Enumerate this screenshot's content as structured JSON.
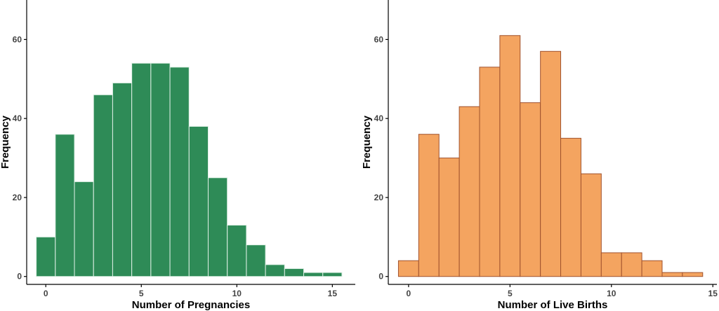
{
  "chart_data": [
    {
      "type": "bar",
      "xlabel": "Number of Pregnancies",
      "ylabel": "Frequency",
      "bin_width": 1,
      "bin_centers": [
        0,
        1,
        2,
        3,
        4,
        5,
        6,
        7,
        8,
        9,
        10,
        11,
        12,
        13,
        14,
        15
      ],
      "values": [
        10,
        36,
        24,
        46,
        49,
        54,
        54,
        53,
        38,
        25,
        13,
        8,
        3,
        2,
        1,
        1
      ],
      "xlim": [
        -1,
        16.2
      ],
      "ylim": [
        -2,
        70
      ],
      "xticks": [
        0,
        5,
        10,
        15
      ],
      "yticks": [
        0,
        20,
        40,
        60
      ],
      "fill": "#2e8b57",
      "stroke": "#dff0e6",
      "grid": false
    },
    {
      "type": "bar",
      "xlabel": "Number of Live Births",
      "ylabel": "Frequency",
      "bin_width": 1,
      "bin_centers": [
        0,
        1,
        2,
        3,
        4,
        5,
        6,
        7,
        8,
        9,
        10,
        11,
        12,
        13,
        14
      ],
      "values": [
        4,
        36,
        30,
        43,
        53,
        61,
        44,
        57,
        35,
        26,
        6,
        6,
        4,
        1,
        1
      ],
      "xlim": [
        -1,
        15.2
      ],
      "ylim": [
        -2,
        70
      ],
      "xticks": [
        0,
        5,
        10,
        15
      ],
      "yticks": [
        0,
        20,
        40,
        60
      ],
      "fill": "#f4a460",
      "stroke": "#a0522d",
      "grid": false
    }
  ]
}
